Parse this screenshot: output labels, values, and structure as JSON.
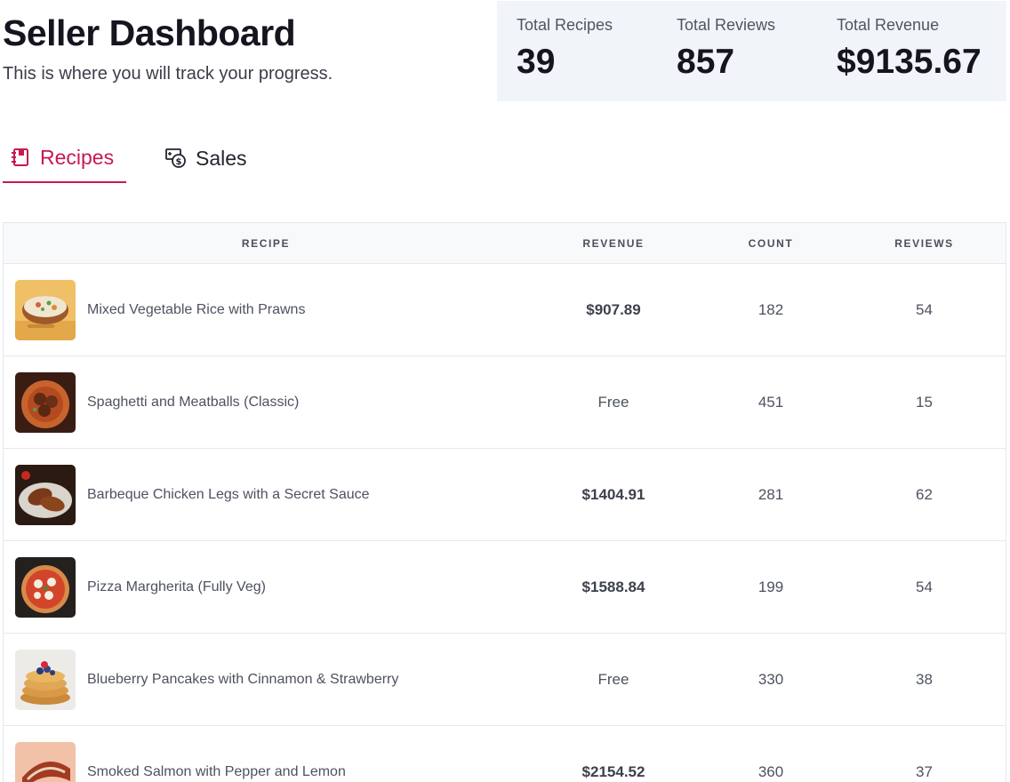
{
  "header": {
    "title": "Seller Dashboard",
    "subtitle": "This is where you will track your progress."
  },
  "stats": [
    {
      "label": "Total Recipes",
      "value": "39"
    },
    {
      "label": "Total Reviews",
      "value": "857"
    },
    {
      "label": "Total Revenue",
      "value": "$9135.67"
    }
  ],
  "tabs": [
    {
      "label": "Recipes",
      "icon": "recipe-book-icon",
      "active": true
    },
    {
      "label": "Sales",
      "icon": "money-icon",
      "active": false
    }
  ],
  "table": {
    "columns": [
      "RECIPE",
      "REVENUE",
      "COUNT",
      "REVIEWS"
    ],
    "rows": [
      {
        "name": "Mixed Vegetable Rice with Prawns",
        "revenue": "$907.89",
        "count": "182",
        "reviews": "54",
        "thumb": "rice-bowl-thumbnail"
      },
      {
        "name": "Spaghetti and Meatballs (Classic)",
        "revenue": "Free",
        "count": "451",
        "reviews": "15",
        "thumb": "spaghetti-thumbnail"
      },
      {
        "name": "Barbeque Chicken Legs with a Secret Sauce",
        "revenue": "$1404.91",
        "count": "281",
        "reviews": "62",
        "thumb": "chicken-legs-thumbnail"
      },
      {
        "name": "Pizza Margherita (Fully Veg)",
        "revenue": "$1588.84",
        "count": "199",
        "reviews": "54",
        "thumb": "pizza-thumbnail"
      },
      {
        "name": "Blueberry Pancakes with Cinnamon & Strawberry",
        "revenue": "Free",
        "count": "330",
        "reviews": "38",
        "thumb": "pancakes-thumbnail"
      },
      {
        "name": "Smoked Salmon with Pepper and Lemon",
        "revenue": "$2154.52",
        "count": "360",
        "reviews": "37",
        "thumb": "salmon-thumbnail"
      }
    ]
  },
  "colors": {
    "accent": "#c8194f",
    "stats_bg": "#f1f4f8"
  }
}
